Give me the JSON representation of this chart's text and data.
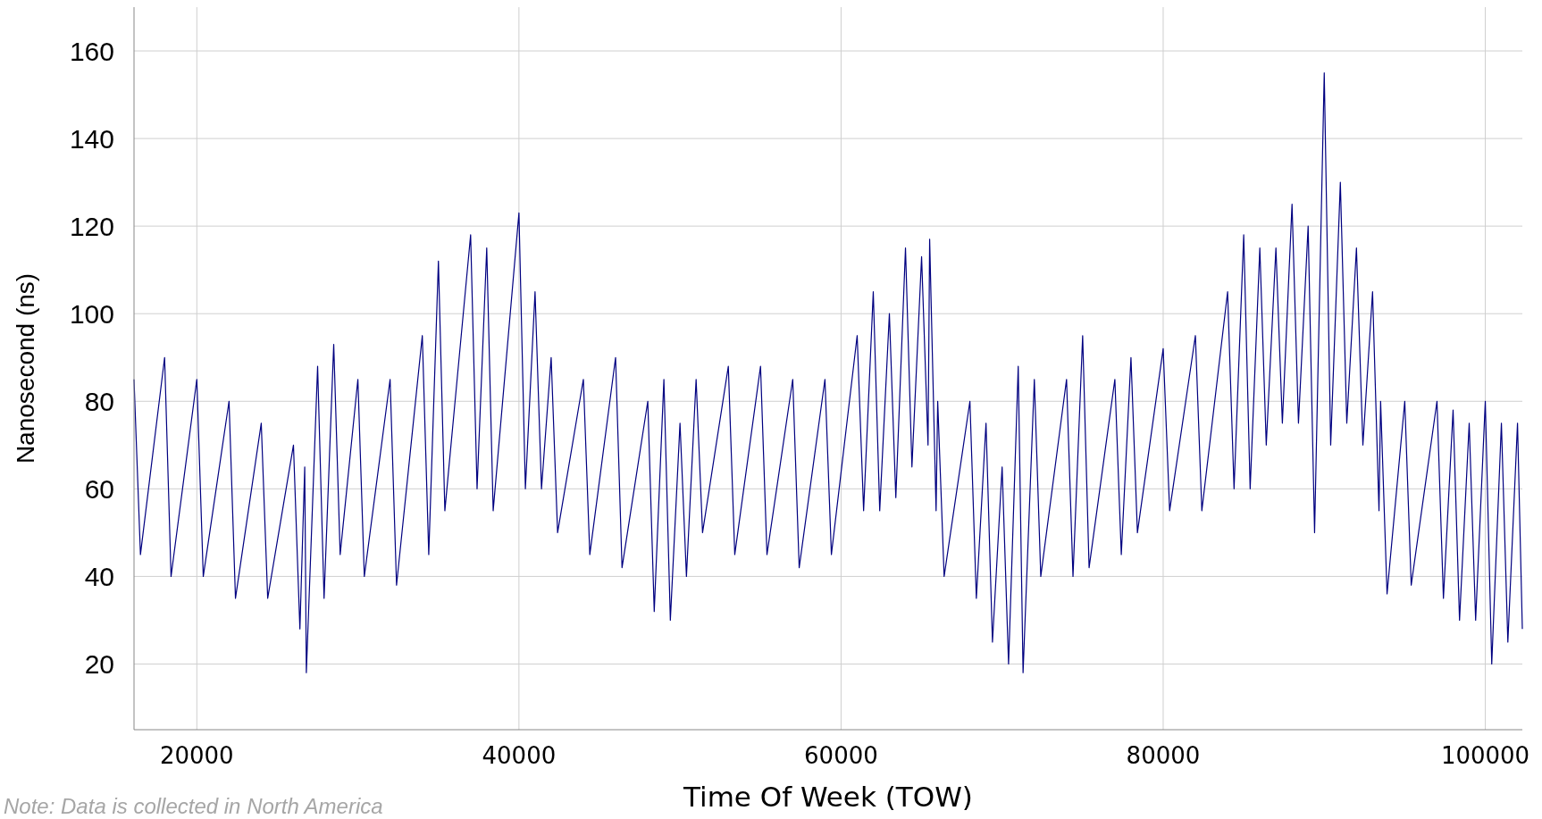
{
  "chart_data": {
    "type": "line",
    "xlabel": "Time Of Week (TOW)",
    "ylabel": "Nanosecond (ns)",
    "annotations": [
      "Note:  Data is collected in North America"
    ],
    "xlim": [
      16100,
      102300
    ],
    "ylim": [
      5,
      170
    ],
    "xticks": [
      20000,
      40000,
      60000,
      80000,
      100000
    ],
    "yticks": [
      20,
      40,
      60,
      80,
      100,
      120,
      140,
      160
    ],
    "grid": true,
    "line_style": "solid",
    "series": [
      {
        "color": "#000080",
        "x": [
          16100,
          16500,
          18000,
          18400,
          20000,
          20400,
          22000,
          22400,
          24000,
          24400,
          26000,
          26400,
          26700,
          26800,
          27500,
          27900,
          28500,
          28900,
          30000,
          30400,
          32000,
          32400,
          34000,
          34400,
          35000,
          35400,
          37000,
          37400,
          38000,
          38400,
          40000,
          40400,
          41000,
          41400,
          42000,
          42400,
          44000,
          44400,
          46000,
          46400,
          48000,
          48400,
          49000,
          49400,
          50000,
          50400,
          51000,
          51400,
          53000,
          53400,
          55000,
          55400,
          57000,
          57400,
          59000,
          59400,
          61000,
          61400,
          62000,
          62400,
          63000,
          63400,
          64000,
          64400,
          65000,
          65400,
          65500,
          65900,
          66000,
          66400,
          68000,
          68400,
          69000,
          69400,
          70000,
          70400,
          71000,
          71300,
          72000,
          72400,
          74000,
          74400,
          75000,
          75400,
          77000,
          77400,
          78000,
          78400,
          80000,
          80400,
          82000,
          82400,
          84000,
          84400,
          85000,
          85400,
          86000,
          86400,
          87000,
          87400,
          88000,
          88400,
          89000,
          89400,
          90000,
          90400,
          91000,
          91400,
          92000,
          92400,
          93000,
          93400,
          93500,
          93900,
          95000,
          95400,
          97000,
          97400,
          98000,
          98400,
          99000,
          99400,
          100000,
          100400,
          101000,
          101400,
          102000,
          102300
        ],
        "values": [
          85,
          45,
          90,
          40,
          85,
          40,
          80,
          35,
          75,
          35,
          70,
          28,
          65,
          18,
          88,
          35,
          93,
          45,
          85,
          40,
          85,
          38,
          95,
          45,
          112,
          55,
          118,
          60,
          115,
          55,
          123,
          60,
          105,
          60,
          90,
          50,
          85,
          45,
          90,
          42,
          80,
          32,
          85,
          30,
          75,
          40,
          85,
          50,
          88,
          45,
          88,
          45,
          85,
          42,
          85,
          45,
          95,
          55,
          105,
          55,
          100,
          58,
          115,
          65,
          113,
          70,
          117,
          55,
          80,
          40,
          80,
          35,
          75,
          25,
          65,
          20,
          88,
          18,
          85,
          40,
          85,
          40,
          95,
          42,
          85,
          45,
          90,
          50,
          92,
          55,
          95,
          55,
          105,
          60,
          118,
          60,
          115,
          70,
          115,
          75,
          125,
          75,
          120,
          50,
          155,
          70,
          130,
          75,
          115,
          70,
          105,
          55,
          80,
          36,
          80,
          38,
          80,
          35,
          78,
          30,
          75,
          30,
          80,
          20,
          75,
          25,
          75,
          28
        ]
      }
    ]
  }
}
